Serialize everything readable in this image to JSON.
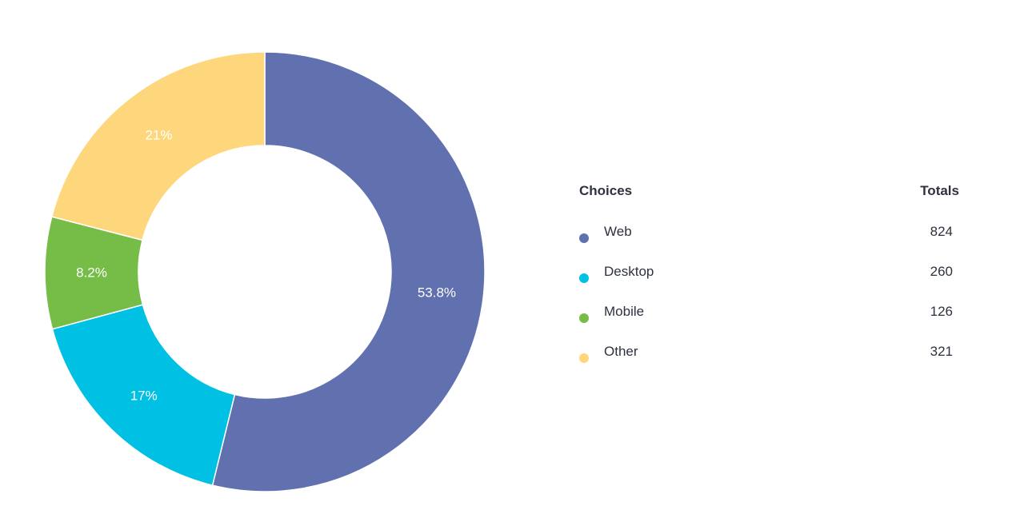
{
  "chart_data": {
    "type": "pie",
    "donut": true,
    "categories": [
      "Web",
      "Desktop",
      "Mobile",
      "Other"
    ],
    "values": [
      824,
      260,
      126,
      321
    ],
    "percent_labels": [
      "53.8%",
      "17%",
      "8.2%",
      "21%"
    ],
    "colors": [
      "#6170af",
      "#00c0e4",
      "#76bd48",
      "#fed77c"
    ],
    "legend": {
      "header_choices": "Choices",
      "header_totals": "Totals",
      "placement": "right"
    }
  }
}
